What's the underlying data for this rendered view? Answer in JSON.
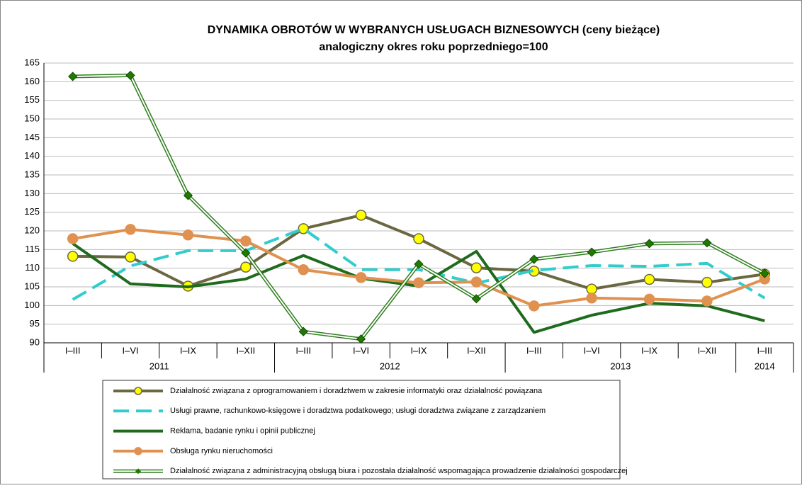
{
  "chart_data": {
    "type": "line",
    "title": "DYNAMIKA OBROTÓW W WYBRANYCH USŁUGACH BIZNESOWYCH (ceny bieżące)",
    "subtitle": "analogiczny okres roku poprzedniego=100",
    "categories": [
      "I–III",
      "I–VI",
      "I–IX",
      "I–XII",
      "I–III",
      "I–VI",
      "I–IX",
      "I–XII",
      "I–III",
      "I–VI",
      "I–IX",
      "I–XII",
      "I–III"
    ],
    "year_groups": [
      {
        "label": "2011",
        "span": 4
      },
      {
        "label": "2012",
        "span": 4
      },
      {
        "label": "2013",
        "span": 4
      },
      {
        "label": "2014",
        "span": 1
      }
    ],
    "ylim": [
      90,
      165
    ],
    "yticks": [
      90,
      95,
      100,
      105,
      110,
      115,
      120,
      125,
      130,
      135,
      140,
      145,
      150,
      155,
      160,
      165
    ],
    "grid": true,
    "series": [
      {
        "name": "Działalność związana z oprogramowaniem i doradztwem w zakresie informatyki oraz działalność powiązana",
        "color": "#6b6741",
        "marker": "circle",
        "marker_color": "#ffff00",
        "style": "solid",
        "values": [
          113.2,
          113.0,
          105.2,
          110.3,
          120.6,
          124.2,
          117.9,
          110.1,
          109.2,
          104.4,
          107.0,
          106.2,
          108.4
        ]
      },
      {
        "name": "Usługi prawne, rachunkowo-księgowe i doradztwa podatkowego; usługi doradztwa związane z zarządzaniem",
        "color": "#33cccc",
        "marker": "none",
        "style": "dashed",
        "values": [
          101.6,
          110.6,
          114.7,
          114.7,
          120.6,
          109.6,
          109.6,
          106.0,
          109.4,
          110.7,
          110.5,
          111.3,
          102.0
        ]
      },
      {
        "name": "Reklama, badanie rynku i opinii publicznej",
        "color": "#1e6b1e",
        "marker": "none",
        "style": "solid",
        "values": [
          116.6,
          105.8,
          105.0,
          107.1,
          113.4,
          107.3,
          105.2,
          114.5,
          92.8,
          97.4,
          100.6,
          99.9,
          95.9
        ]
      },
      {
        "name": "Obsługa rynku nieruchomości",
        "color": "#e0914f",
        "marker": "circle",
        "marker_color": "#e0914f",
        "style": "solid",
        "values": [
          117.9,
          120.4,
          118.9,
          117.3,
          109.6,
          107.5,
          106.1,
          106.3,
          99.9,
          102.0,
          101.7,
          101.2,
          107.1
        ]
      },
      {
        "name": "Działalność związana z administracyjną obsługą biura i pozostała działalność wspomagająca prowadzenie działalności gospodarczej",
        "color": "#2e7d1e",
        "marker": "diamond",
        "marker_color": "#1f7a00",
        "style": "double",
        "values": [
          161.4,
          161.7,
          129.5,
          114.1,
          93.0,
          91.0,
          111.1,
          101.8,
          112.4,
          114.3,
          116.6,
          116.8,
          108.6
        ]
      }
    ]
  }
}
